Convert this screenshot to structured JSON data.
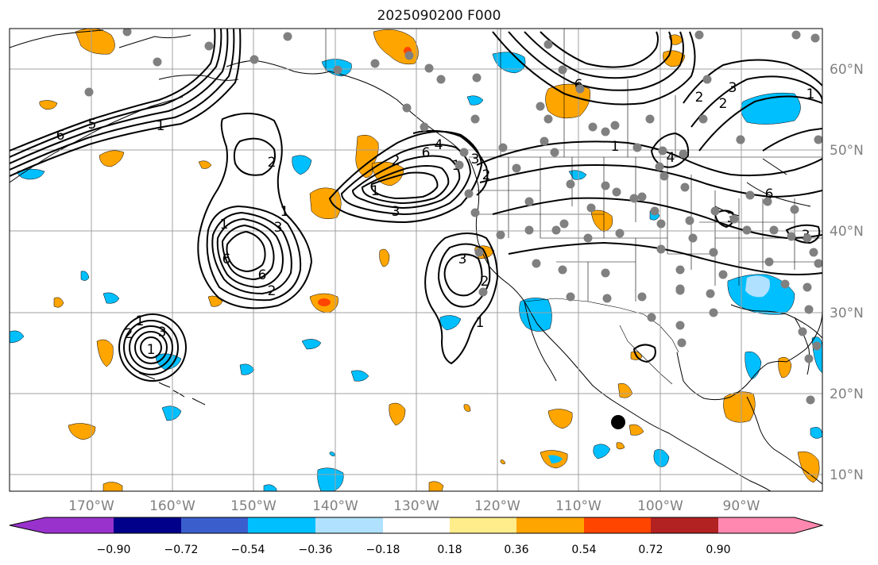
{
  "title": "2025090200 F000",
  "axes": {
    "lon_labels": [
      "170°W",
      "160°W",
      "150°W",
      "140°W",
      "130°W",
      "120°W",
      "110°W",
      "100°W",
      "90°W"
    ],
    "lat_labels": [
      "60°N",
      "50°N",
      "40°N",
      "30°N",
      "20°N",
      "10°N"
    ]
  },
  "colorbar": {
    "tick_labels": [
      "−0.90",
      "−0.72",
      "−0.54",
      "−0.36",
      "−0.18",
      "0.18",
      "0.36",
      "0.54",
      "0.72",
      "0.90"
    ],
    "colors": [
      "#9932cc",
      "#00008b",
      "#3a5fcd",
      "#00bfff",
      "#b0e2ff",
      "#ffffff",
      "#ffec8b",
      "#ffa500",
      "#ff4500",
      "#b22222",
      "#ff88b0"
    ]
  },
  "colors": {
    "station": "#808080",
    "contour": "#000000",
    "grid": "#a0a0a0",
    "tick_text": "#808080"
  },
  "contour_labels": [
    {
      "text": "1"
    },
    {
      "text": "2"
    },
    {
      "text": "3"
    },
    {
      "text": "2"
    },
    {
      "text": "6"
    },
    {
      "text": "1"
    },
    {
      "text": "6"
    },
    {
      "text": "3"
    },
    {
      "text": "2"
    },
    {
      "text": "1"
    },
    {
      "text": "3"
    },
    {
      "text": "2"
    },
    {
      "text": "1"
    },
    {
      "text": "4"
    },
    {
      "text": "6"
    },
    {
      "text": "2"
    },
    {
      "text": "3"
    },
    {
      "text": "1"
    },
    {
      "text": "2"
    },
    {
      "text": "1"
    },
    {
      "text": "3"
    },
    {
      "text": "2"
    },
    {
      "text": "1"
    },
    {
      "text": "1"
    },
    {
      "text": "6"
    },
    {
      "text": "5"
    },
    {
      "text": "3"
    },
    {
      "text": "2"
    },
    {
      "text": "4"
    },
    {
      "text": "6"
    },
    {
      "text": "1"
    },
    {
      "text": "3"
    },
    {
      "text": "6"
    },
    {
      "text": "3"
    },
    {
      "text": "1"
    }
  ]
}
